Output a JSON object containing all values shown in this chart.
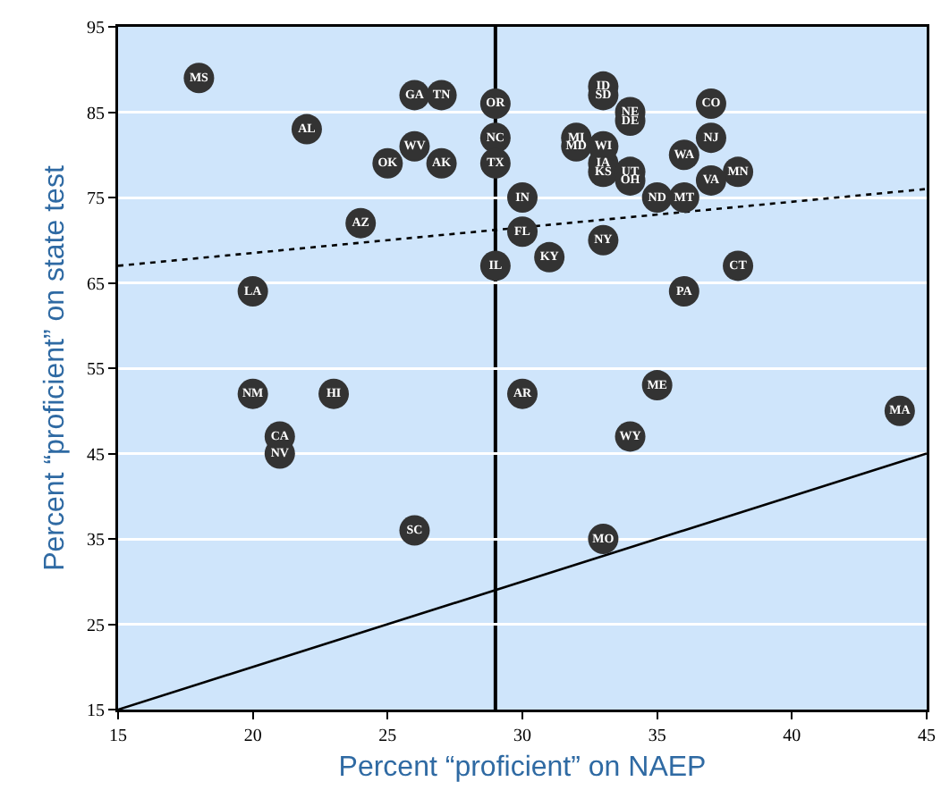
{
  "chart_data": {
    "type": "scatter",
    "xlabel": "Percent “proficient” on NAEP",
    "ylabel": "Percent “proficient” on state test",
    "xlim": [
      15,
      45
    ],
    "xticks": [
      15,
      20,
      25,
      30,
      35,
      40,
      45
    ],
    "ylim": [
      15,
      95
    ],
    "yticks": [
      15,
      25,
      35,
      45,
      55,
      65,
      75,
      85,
      95
    ],
    "grid": "y",
    "marker": "circle",
    "series": [
      {
        "type": "line",
        "line_style": "solid",
        "marker": "none",
        "color": "#000000",
        "x": [
          15,
          45
        ],
        "values": [
          15,
          45
        ]
      },
      {
        "type": "line",
        "line_style": "dotted",
        "marker": "none",
        "color": "#000000",
        "x": [
          15,
          45
        ],
        "values": [
          67,
          76
        ]
      },
      {
        "color": "#333333",
        "x": [
          18,
          26,
          27,
          29,
          22,
          29,
          26,
          25,
          27,
          29,
          30,
          24,
          30,
          29,
          20,
          33,
          33,
          34,
          34,
          37,
          37,
          32,
          32,
          33,
          33,
          33,
          36,
          34,
          34,
          38,
          37,
          35,
          36,
          33,
          31,
          38,
          36,
          20,
          23,
          21,
          21,
          26,
          30,
          35,
          34,
          44,
          33
        ],
        "values": [
          89,
          87,
          87,
          86,
          83,
          82,
          81,
          79,
          79,
          79,
          75,
          72,
          71,
          67,
          64,
          88,
          87,
          85,
          84,
          86,
          82,
          82,
          81,
          81,
          79,
          78,
          80,
          78,
          77,
          78,
          77,
          75,
          75,
          70,
          68,
          67,
          64,
          52,
          52,
          47,
          45,
          36,
          52,
          53,
          47,
          50,
          35
        ],
        "value_labels": [
          "MS",
          "GA",
          "TN",
          "OR",
          "AL",
          "NC",
          "WV",
          "OK",
          "AK",
          "TX",
          "IN",
          "AZ",
          "FL",
          "IL",
          "LA",
          "ID",
          "SD",
          "NE",
          "DE",
          "CO",
          "NJ",
          "MI",
          "MD",
          "WI",
          "IA",
          "KS",
          "WA",
          "UT",
          "OH",
          "MN",
          "VA",
          "ND",
          "MT",
          "NY",
          "KY",
          "CT",
          "PA",
          "NM",
          "HI",
          "CA",
          "NV",
          "SC",
          "AR",
          "ME",
          "WY",
          "MA",
          "MO"
        ]
      }
    ],
    "ref_lines": [
      {
        "axis": "x",
        "value": 29,
        "color": "#000000",
        "line_style": "solid"
      }
    ]
  }
}
